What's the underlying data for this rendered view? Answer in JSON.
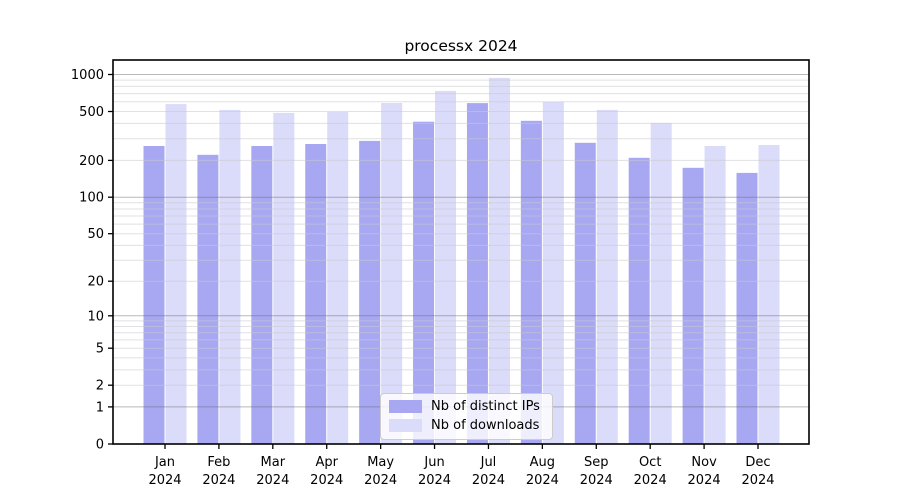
{
  "title": "processx 2024",
  "legend": {
    "items": [
      {
        "label": "Nb of distinct IPs",
        "series_key": "distinct_ips",
        "color": "#a8a8f2"
      },
      {
        "label": "Nb of downloads",
        "series_key": "downloads",
        "color": "#dbdbfa"
      }
    ]
  },
  "y_axis": {
    "ticks": [
      {
        "label": "1000",
        "value": 1000
      },
      {
        "label": "500",
        "value": 500
      },
      {
        "label": "200",
        "value": 200
      },
      {
        "label": "100",
        "value": 100
      },
      {
        "label": "50",
        "value": 50
      },
      {
        "label": "20",
        "value": 20
      },
      {
        "label": "10",
        "value": 10
      },
      {
        "label": "5",
        "value": 5
      },
      {
        "label": "2",
        "value": 2
      },
      {
        "label": "1",
        "value": 1
      },
      {
        "label": "0",
        "value": 0
      }
    ],
    "major_gridline_values": [
      1,
      10,
      100,
      1000
    ],
    "minor_gridline_values": [
      2,
      3,
      4,
      5,
      6,
      7,
      8,
      9,
      20,
      30,
      40,
      50,
      60,
      70,
      80,
      90,
      200,
      300,
      400,
      500,
      600,
      700,
      800,
      900
    ]
  },
  "chart_data": {
    "type": "bar",
    "title": "processx 2024",
    "categories": [
      "Jan 2024",
      "Feb 2024",
      "Mar 2024",
      "Apr 2024",
      "May 2024",
      "Jun 2024",
      "Jul 2024",
      "Aug 2024",
      "Sep 2024",
      "Oct 2024",
      "Nov 2024",
      "Dec 2024"
    ],
    "series": [
      {
        "name": "Nb of distinct IPs",
        "color": "#a8a8f2",
        "values": [
          262,
          222,
          262,
          272,
          288,
          413,
          585,
          420,
          278,
          210,
          174,
          158
        ]
      },
      {
        "name": "Nb of downloads",
        "color": "#dbdbfa",
        "values": [
          575,
          515,
          487,
          496,
          586,
          735,
          938,
          598,
          515,
          404,
          262,
          267
        ]
      }
    ],
    "yscale": "log10(value+1)",
    "ylim": [
      0,
      1300
    ],
    "grid": true,
    "legend_position": "lower center",
    "xlabel": "",
    "ylabel": ""
  },
  "colors": {
    "bar_distinct_ips": "#a8a8f2",
    "bar_downloads": "#dbdbfa",
    "grid_major": "rgba(100,100,100,0.45)",
    "grid_minor": "rgba(200,200,205,0.55)",
    "axis": "#000000",
    "background": "#ffffff"
  }
}
